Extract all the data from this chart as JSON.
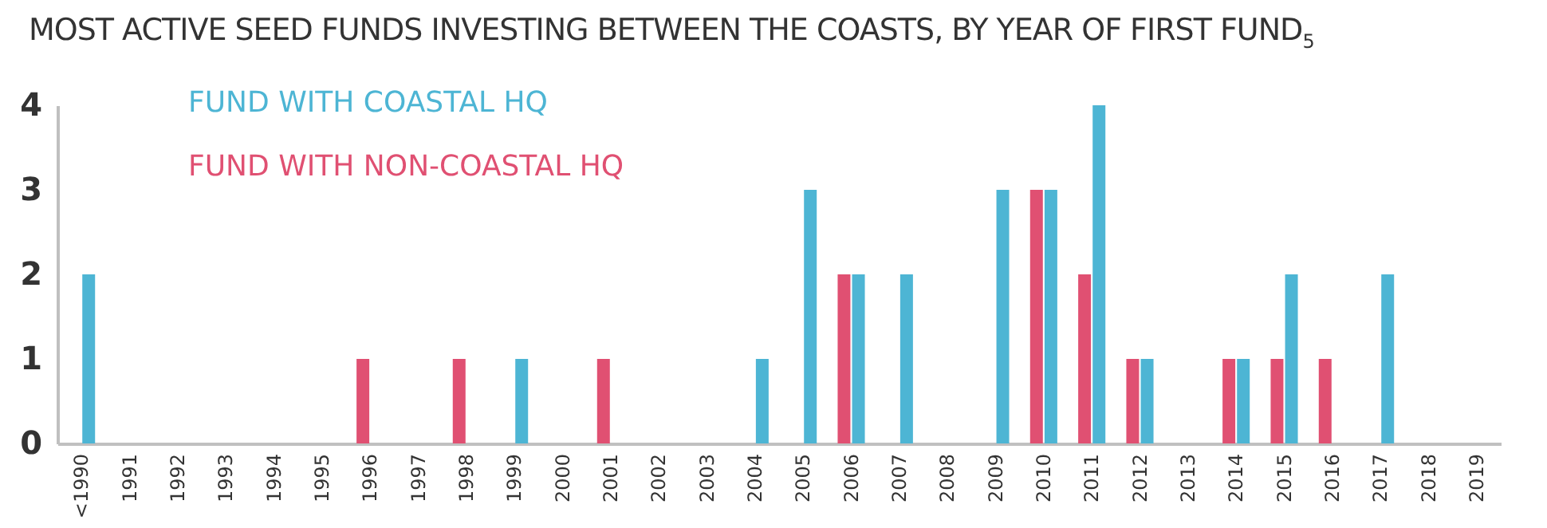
{
  "chart_data": {
    "type": "bar",
    "title": "MOST ACTIVE SEED FUNDS INVESTING BETWEEN THE COASTS, BY YEAR OF FIRST FUND$_{5}$",
    "categories": [
      "<1990",
      "1991",
      "1992",
      "1993",
      "1994",
      "1995",
      "1996",
      "1997",
      "1998",
      "1999",
      "2000",
      "2001",
      "2002",
      "2003",
      "2004",
      "2005",
      "2006",
      "2007",
      "2008",
      "2009",
      "2010",
      "2011",
      "2012",
      "2013",
      "2014",
      "2015",
      "2016",
      "2017",
      "2018",
      "2019"
    ],
    "series": [
      {
        "name": "FUND WITH NON-COASTAL HQ",
        "color": "#e05072",
        "values": [
          0,
          0,
          0,
          0,
          0,
          0,
          1,
          0,
          1,
          0,
          0,
          1,
          0,
          0,
          0,
          0,
          2,
          0,
          0,
          0,
          3,
          2,
          1,
          0,
          1,
          1,
          1,
          0,
          0,
          0
        ]
      },
      {
        "name": "FUND WITH COASTAL HQ",
        "color": "#4db5d4",
        "values": [
          2,
          0,
          0,
          0,
          0,
          0,
          0,
          0,
          0,
          1,
          0,
          0,
          0,
          0,
          1,
          3,
          2,
          2,
          0,
          3,
          3,
          4,
          1,
          0,
          1,
          2,
          0,
          2,
          0,
          0
        ]
      }
    ],
    "ylim": [
      0,
      4
    ],
    "yticks": [
      0,
      1,
      2,
      3,
      4
    ],
    "grid": false,
    "legend": "top left"
  }
}
